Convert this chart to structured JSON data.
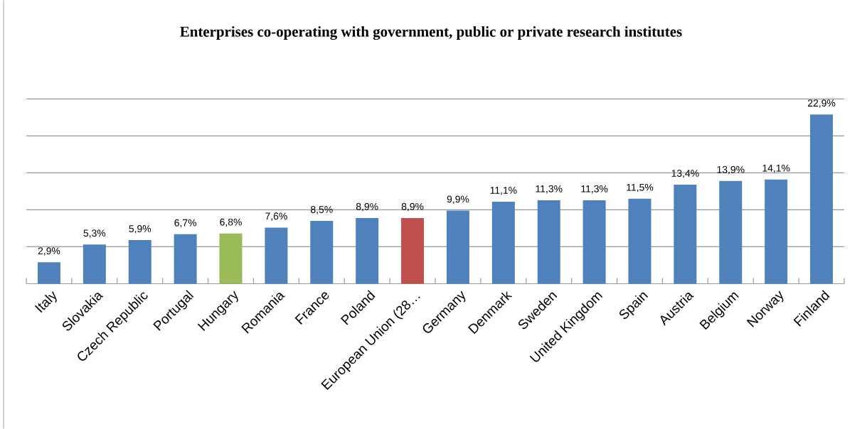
{
  "chart_data": {
    "type": "bar",
    "title": "Enterprises co-operating with government, public or private research institutes",
    "categories": [
      "Italy",
      "Slovakia",
      "Czech Republic",
      "Portugal",
      "Hungary",
      "Romania",
      "France",
      "Poland",
      "European Union (28…",
      "Germany",
      "Denmark",
      "Sweden",
      "United Kingdom",
      "Spain",
      "Austria",
      "Belgium",
      "Norway",
      "Finland"
    ],
    "values": [
      2.9,
      5.3,
      5.9,
      6.7,
      6.8,
      7.6,
      8.5,
      8.9,
      8.9,
      9.9,
      11.1,
      11.3,
      11.3,
      11.5,
      13.4,
      13.9,
      14.1,
      22.9
    ],
    "value_labels": [
      "2,9%",
      "5,3%",
      "5,9%",
      "6,7%",
      "6,8%",
      "7,6%",
      "8,5%",
      "8,9%",
      "8,9%",
      "9,9%",
      "11,1%",
      "11,3%",
      "11,3%",
      "11,5%",
      "13,4%",
      "13,9%",
      "14,1%",
      "22,9%"
    ],
    "colors": [
      "#4f81bd",
      "#4f81bd",
      "#4f81bd",
      "#4f81bd",
      "#9bbb59",
      "#4f81bd",
      "#4f81bd",
      "#4f81bd",
      "#c0504d",
      "#4f81bd",
      "#4f81bd",
      "#4f81bd",
      "#4f81bd",
      "#4f81bd",
      "#4f81bd",
      "#4f81bd",
      "#4f81bd",
      "#4f81bd"
    ],
    "tick_labels": "x",
    "grid": "y"
  }
}
